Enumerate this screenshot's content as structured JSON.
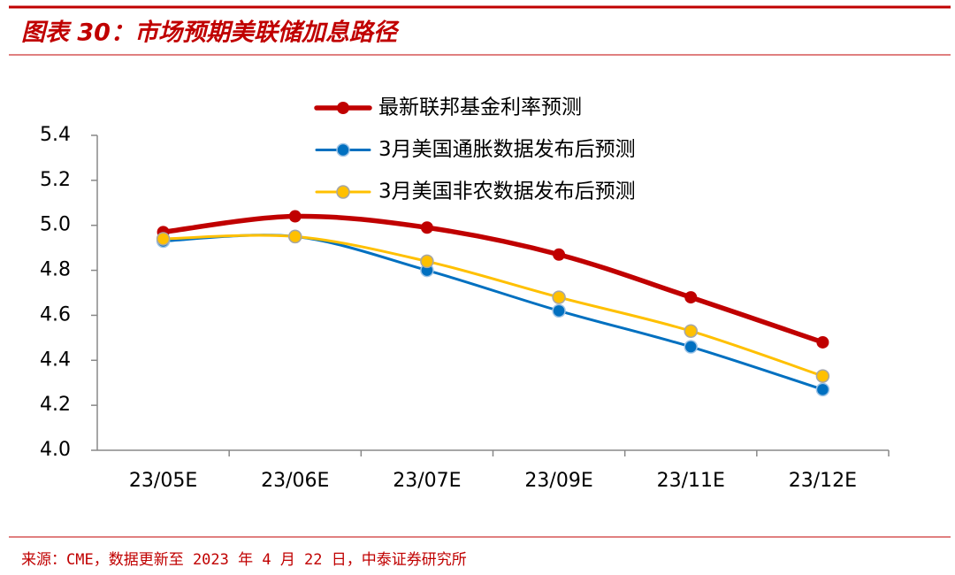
{
  "chart_data": {
    "type": "line",
    "title": "图表 30：市场预期美联储加息路径",
    "source": "来源：CME，数据更新至 2023 年 4 月 22 日，中泰证券研究所",
    "categories": [
      "23/05E",
      "23/06E",
      "23/07E",
      "23/09E",
      "23/11E",
      "23/12E"
    ],
    "series": [
      {
        "name": "最新联邦基金利率预测",
        "color": "#c00000",
        "values": [
          4.97,
          5.04,
          4.99,
          4.87,
          4.68,
          4.48
        ]
      },
      {
        "name": "3月美国通胀数据发布后预测",
        "color": "#0070c0",
        "values": [
          4.93,
          4.95,
          4.8,
          4.62,
          4.46,
          4.27
        ]
      },
      {
        "name": "3月美国非农数据发布后预测",
        "color": "#ffc000",
        "values": [
          4.94,
          4.95,
          4.84,
          4.68,
          4.53,
          4.33
        ]
      }
    ],
    "ylim": [
      4.0,
      5.4
    ],
    "yticks": [
      {
        "value": 4.0,
        "label": "4.0"
      },
      4.2,
      4.4,
      4.6,
      4.8,
      {
        "value": 5.0,
        "label": "5.0"
      },
      5.2,
      5.4
    ],
    "legend": "top",
    "grid": false
  }
}
